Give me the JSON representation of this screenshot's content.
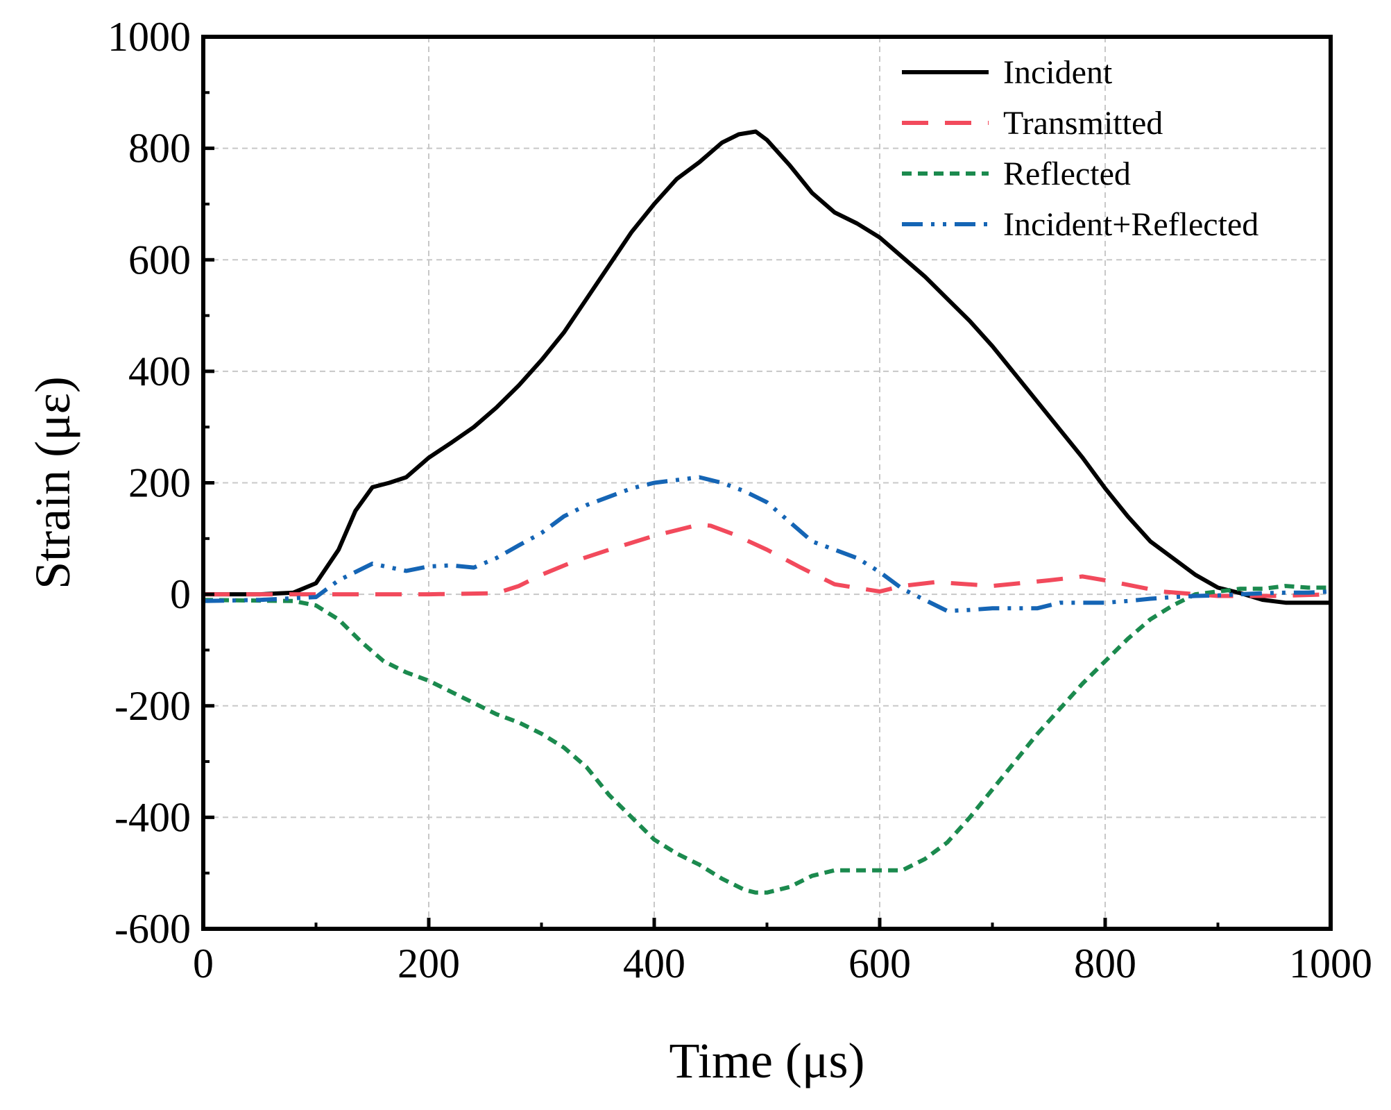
{
  "chart_data": {
    "type": "line",
    "xlabel": "Time (μs)",
    "ylabel": "Strain (με)",
    "xlim": [
      0,
      1000
    ],
    "ylim": [
      -600,
      1000
    ],
    "xticks": [
      0,
      200,
      400,
      600,
      800,
      1000
    ],
    "yticks": [
      -600,
      -400,
      -200,
      0,
      200,
      400,
      600,
      800,
      1000
    ],
    "xtick_labels": [
      "0",
      "200",
      "400",
      "600",
      "800",
      "1000"
    ],
    "ytick_labels": [
      "-600",
      "-400",
      "-200",
      "0",
      "200",
      "400",
      "600",
      "800",
      "1000"
    ],
    "grid": true,
    "legend_position": "top-right",
    "series": [
      {
        "name": "Incident",
        "color": "#000000",
        "dash": "solid",
        "x": [
          0,
          50,
          80,
          100,
          120,
          135,
          150,
          165,
          180,
          200,
          220,
          240,
          260,
          280,
          300,
          320,
          340,
          360,
          380,
          400,
          420,
          440,
          460,
          475,
          490,
          500,
          520,
          540,
          560,
          580,
          600,
          620,
          640,
          660,
          680,
          700,
          720,
          740,
          760,
          780,
          800,
          820,
          840,
          860,
          880,
          900,
          920,
          940,
          960,
          980,
          1000
        ],
        "y": [
          0,
          0,
          3,
          20,
          80,
          150,
          192,
          200,
          210,
          245,
          272,
          300,
          335,
          375,
          420,
          470,
          530,
          590,
          650,
          700,
          745,
          775,
          810,
          825,
          830,
          815,
          770,
          720,
          685,
          665,
          640,
          605,
          570,
          530,
          490,
          445,
          395,
          345,
          295,
          245,
          190,
          140,
          95,
          65,
          35,
          12,
          2,
          -10,
          -15,
          -15,
          -15
        ]
      },
      {
        "name": "Transmitted",
        "color": "#f24a5c",
        "dash": "long-dash",
        "x": [
          0,
          100,
          200,
          260,
          280,
          300,
          330,
          360,
          400,
          440,
          450,
          470,
          500,
          530,
          560,
          600,
          620,
          650,
          700,
          750,
          780,
          800,
          850,
          900,
          950,
          1000
        ],
        "y": [
          0,
          0,
          0,
          2,
          15,
          35,
          60,
          80,
          105,
          125,
          123,
          108,
          80,
          48,
          18,
          5,
          15,
          22,
          15,
          25,
          32,
          25,
          5,
          -3,
          -3,
          0
        ]
      },
      {
        "name": "Reflected",
        "color": "#1b8a4e",
        "dash": "short-dash",
        "x": [
          0,
          80,
          100,
          120,
          140,
          160,
          180,
          200,
          220,
          240,
          260,
          280,
          300,
          320,
          340,
          360,
          380,
          400,
          420,
          440,
          460,
          480,
          490,
          500,
          520,
          540,
          560,
          580,
          600,
          620,
          640,
          660,
          680,
          700,
          720,
          740,
          760,
          780,
          800,
          820,
          840,
          860,
          880,
          900,
          920,
          940,
          960,
          980,
          1000
        ],
        "y": [
          -10,
          -12,
          -20,
          -45,
          -85,
          -120,
          -140,
          -155,
          -175,
          -195,
          -215,
          -230,
          -250,
          -275,
          -310,
          -360,
          -400,
          -440,
          -465,
          -485,
          -510,
          -530,
          -535,
          -535,
          -525,
          -505,
          -495,
          -495,
          -495,
          -495,
          -475,
          -445,
          -400,
          -350,
          -300,
          -250,
          -205,
          -160,
          -120,
          -80,
          -45,
          -20,
          0,
          5,
          10,
          10,
          15,
          12,
          12
        ]
      },
      {
        "name": "Incident+Reflected",
        "color": "#1565b5",
        "dash": "dash-dot-dot",
        "x": [
          0,
          50,
          100,
          120,
          150,
          180,
          200,
          220,
          240,
          260,
          280,
          300,
          320,
          340,
          360,
          380,
          400,
          420,
          440,
          460,
          480,
          500,
          520,
          540,
          560,
          580,
          600,
          620,
          640,
          660,
          680,
          700,
          720,
          740,
          760,
          780,
          800,
          820,
          840,
          860,
          880,
          900,
          920,
          940,
          960,
          980,
          1000
        ],
        "y": [
          -12,
          -10,
          -5,
          25,
          55,
          42,
          50,
          52,
          48,
          65,
          88,
          110,
          140,
          160,
          175,
          190,
          200,
          205,
          210,
          200,
          185,
          165,
          130,
          95,
          80,
          65,
          40,
          10,
          -10,
          -30,
          -28,
          -25,
          -25,
          -25,
          -15,
          -15,
          -15,
          -12,
          -8,
          -5,
          -3,
          -2,
          0,
          2,
          3,
          3,
          5
        ]
      }
    ]
  }
}
